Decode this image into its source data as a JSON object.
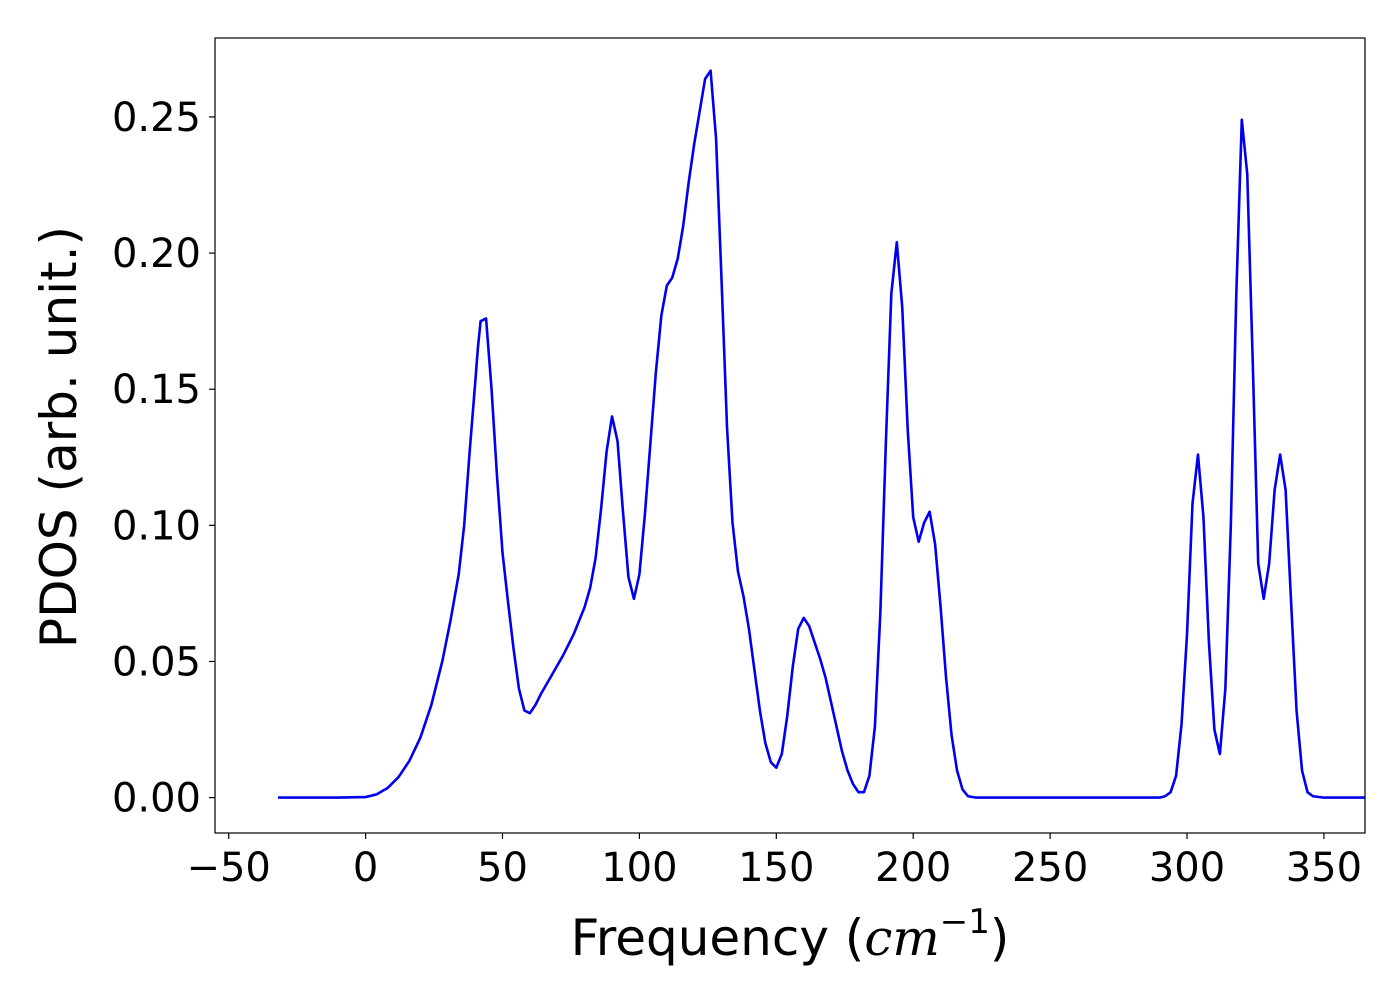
{
  "chart_data": {
    "type": "line",
    "title": "",
    "xlabel": "Frequency (cm^-1)",
    "xlabel_parts": {
      "prefix": "Frequency (",
      "italic": "cm",
      "superscript": "−1",
      "suffix": ")"
    },
    "ylabel": "PDOS (arb. unit.)",
    "xlim": [
      -55,
      365
    ],
    "ylim": [
      -0.013,
      0.279
    ],
    "xticks": [
      -50,
      0,
      50,
      100,
      150,
      200,
      250,
      300,
      350
    ],
    "xtick_labels": [
      "−50",
      "0",
      "50",
      "100",
      "150",
      "200",
      "250",
      "300",
      "350"
    ],
    "yticks": [
      0.0,
      0.05,
      0.1,
      0.15,
      0.2,
      0.25
    ],
    "ytick_labels": [
      "0.00",
      "0.05",
      "0.10",
      "0.15",
      "0.20",
      "0.25"
    ],
    "grid": false,
    "legend": "none",
    "series": [
      {
        "color": "#0000ee",
        "points": [
          [
            -32,
            0.0
          ],
          [
            -10,
            0.0
          ],
          [
            0,
            0.0002
          ],
          [
            4,
            0.0012
          ],
          [
            8,
            0.0035
          ],
          [
            12,
            0.0075
          ],
          [
            16,
            0.0135
          ],
          [
            20,
            0.022
          ],
          [
            24,
            0.034
          ],
          [
            28,
            0.05
          ],
          [
            31,
            0.065
          ],
          [
            34,
            0.082
          ],
          [
            36,
            0.1
          ],
          [
            38,
            0.127
          ],
          [
            40,
            0.152
          ],
          [
            41,
            0.165
          ],
          [
            42,
            0.175
          ],
          [
            44,
            0.176
          ],
          [
            46,
            0.15
          ],
          [
            48,
            0.118
          ],
          [
            50,
            0.09
          ],
          [
            52,
            0.072
          ],
          [
            54,
            0.055
          ],
          [
            56,
            0.04
          ],
          [
            58,
            0.032
          ],
          [
            60,
            0.031
          ],
          [
            62,
            0.034
          ],
          [
            64,
            0.038
          ],
          [
            68,
            0.045
          ],
          [
            72,
            0.052
          ],
          [
            76,
            0.06
          ],
          [
            80,
            0.07
          ],
          [
            82,
            0.077
          ],
          [
            84,
            0.088
          ],
          [
            86,
            0.106
          ],
          [
            88,
            0.127
          ],
          [
            90,
            0.14
          ],
          [
            92,
            0.131
          ],
          [
            94,
            0.105
          ],
          [
            96,
            0.081
          ],
          [
            98,
            0.073
          ],
          [
            100,
            0.082
          ],
          [
            102,
            0.104
          ],
          [
            104,
            0.13
          ],
          [
            106,
            0.156
          ],
          [
            108,
            0.177
          ],
          [
            110,
            0.188
          ],
          [
            112,
            0.191
          ],
          [
            114,
            0.198
          ],
          [
            116,
            0.21
          ],
          [
            118,
            0.226
          ],
          [
            120,
            0.24
          ],
          [
            122,
            0.252
          ],
          [
            124,
            0.264
          ],
          [
            126,
            0.267
          ],
          [
            128,
            0.242
          ],
          [
            130,
            0.19
          ],
          [
            132,
            0.136
          ],
          [
            134,
            0.101
          ],
          [
            136,
            0.083
          ],
          [
            138,
            0.074
          ],
          [
            140,
            0.062
          ],
          [
            142,
            0.047
          ],
          [
            144,
            0.032
          ],
          [
            146,
            0.02
          ],
          [
            148,
            0.013
          ],
          [
            150,
            0.011
          ],
          [
            152,
            0.016
          ],
          [
            154,
            0.03
          ],
          [
            156,
            0.048
          ],
          [
            158,
            0.062
          ],
          [
            160,
            0.066
          ],
          [
            162,
            0.063
          ],
          [
            164,
            0.057
          ],
          [
            166,
            0.051
          ],
          [
            168,
            0.044
          ],
          [
            170,
            0.035
          ],
          [
            172,
            0.026
          ],
          [
            174,
            0.017
          ],
          [
            176,
            0.01
          ],
          [
            178,
            0.005
          ],
          [
            180,
            0.002
          ],
          [
            182,
            0.002
          ],
          [
            184,
            0.008
          ],
          [
            186,
            0.026
          ],
          [
            188,
            0.068
          ],
          [
            190,
            0.13
          ],
          [
            192,
            0.185
          ],
          [
            194,
            0.204
          ],
          [
            196,
            0.18
          ],
          [
            198,
            0.135
          ],
          [
            200,
            0.103
          ],
          [
            202,
            0.094
          ],
          [
            204,
            0.101
          ],
          [
            206,
            0.105
          ],
          [
            208,
            0.093
          ],
          [
            210,
            0.07
          ],
          [
            212,
            0.044
          ],
          [
            214,
            0.023
          ],
          [
            216,
            0.01
          ],
          [
            218,
            0.003
          ],
          [
            220,
            0.0005
          ],
          [
            223,
            0.0
          ],
          [
            290,
            0.0
          ],
          [
            292,
            0.0005
          ],
          [
            294,
            0.002
          ],
          [
            296,
            0.008
          ],
          [
            298,
            0.027
          ],
          [
            300,
            0.06
          ],
          [
            302,
            0.108
          ],
          [
            304,
            0.126
          ],
          [
            306,
            0.103
          ],
          [
            308,
            0.057
          ],
          [
            310,
            0.025
          ],
          [
            312,
            0.016
          ],
          [
            314,
            0.04
          ],
          [
            316,
            0.1
          ],
          [
            318,
            0.185
          ],
          [
            320,
            0.249
          ],
          [
            322,
            0.229
          ],
          [
            324,
            0.16
          ],
          [
            326,
            0.086
          ],
          [
            328,
            0.073
          ],
          [
            330,
            0.086
          ],
          [
            332,
            0.113
          ],
          [
            334,
            0.126
          ],
          [
            336,
            0.113
          ],
          [
            338,
            0.072
          ],
          [
            340,
            0.032
          ],
          [
            342,
            0.01
          ],
          [
            344,
            0.002
          ],
          [
            346,
            0.0005
          ],
          [
            350,
            0.0
          ],
          [
            368,
            0.0
          ]
        ]
      }
    ]
  }
}
